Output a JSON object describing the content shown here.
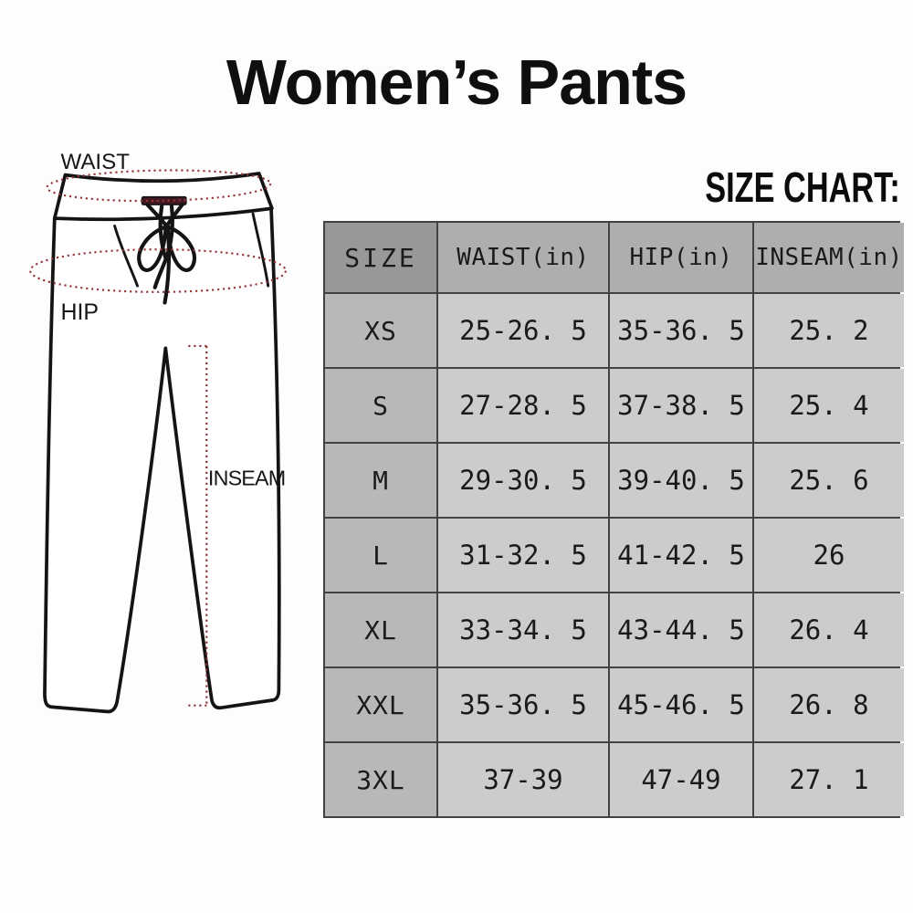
{
  "title": "Women’s Pants",
  "heading": "SIZE CHART:",
  "diagram": {
    "waist_label": "WAIST",
    "hip_label": "HIP",
    "inseam_label": "INSEAM"
  },
  "table": {
    "columns": [
      "SIZE",
      "WAIST(in)",
      "HIP(in)",
      "INSEAM(in)"
    ],
    "rows": [
      [
        "XS",
        "25-26. 5",
        "35-36. 5",
        "25. 2"
      ],
      [
        "S",
        "27-28. 5",
        "37-38. 5",
        "25. 4"
      ],
      [
        "M",
        "29-30. 5",
        "39-40. 5",
        "25. 6"
      ],
      [
        "L",
        "31-32. 5",
        "41-42. 5",
        "26"
      ],
      [
        "XL",
        "33-34. 5",
        "43-44. 5",
        "26. 4"
      ],
      [
        "XXL",
        "35-36. 5",
        "45-46. 5",
        "26. 8"
      ],
      [
        "3XL",
        "37-39",
        "47-49",
        "27. 1"
      ]
    ]
  },
  "chart_data": {
    "type": "table",
    "title": "Women's Pants — SIZE CHART",
    "units": "inches",
    "columns": [
      "SIZE",
      "WAIST(in)",
      "HIP(in)",
      "INSEAM(in)"
    ],
    "rows": [
      [
        "XS",
        "25-26.5",
        "35-36.5",
        "25.2"
      ],
      [
        "S",
        "27-28.5",
        "37-38.5",
        "25.4"
      ],
      [
        "M",
        "29-30.5",
        "39-40.5",
        "25.6"
      ],
      [
        "L",
        "31-32.5",
        "41-42.5",
        "26"
      ],
      [
        "XL",
        "33-34.5",
        "43-44.5",
        "26.4"
      ],
      [
        "XXL",
        "35-36.5",
        "45-46.5",
        "26.8"
      ],
      [
        "3XL",
        "37-39",
        "47-49",
        "27.1"
      ]
    ]
  },
  "colors": {
    "measure_line_red": "#93383a",
    "drawstring_bar": "#451722",
    "pants_outline": "#141414",
    "table_border": "#424242",
    "header_size_bg": "#989898",
    "header_bg": "#aeaeae",
    "size_column_bg": "#b8b8b8",
    "data_cell_bg": "#cccccc",
    "text": "#1a1a1a",
    "background": "#fdfdfd"
  }
}
